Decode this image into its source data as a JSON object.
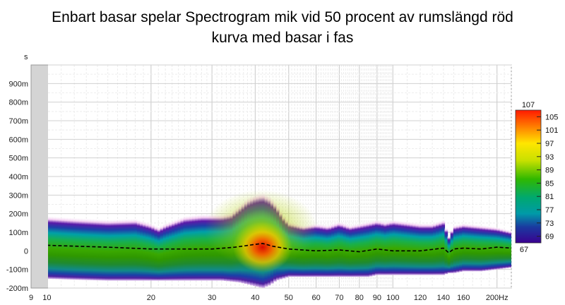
{
  "title_line1": "Enbart basar spelar Spectrogram mik vid 50 procent av rumslängd röd",
  "title_line2": "kurva med basar i fas",
  "chart_data": {
    "type": "heatmap",
    "y_unit_label": "s",
    "x_unit_label": "Hz",
    "x_scale": "log",
    "x_range": [
      9,
      220
    ],
    "y_range": [
      -0.2,
      1.0
    ],
    "x_ticks": [
      "9",
      "10",
      "20",
      "30",
      "40",
      "50",
      "60",
      "70",
      "80",
      "90",
      "100",
      "120",
      "140",
      "160",
      "200Hz"
    ],
    "x_tick_values": [
      9,
      10,
      20,
      30,
      40,
      50,
      60,
      70,
      80,
      90,
      100,
      120,
      140,
      160,
      200
    ],
    "y_ticks": [
      "900m",
      "800m",
      "700m",
      "600m",
      "500m",
      "400m",
      "300m",
      "200m",
      "100m",
      "0",
      "-100m",
      "-200m"
    ],
    "y_tick_values": [
      0.9,
      0.8,
      0.7,
      0.6,
      0.5,
      0.4,
      0.3,
      0.2,
      0.1,
      0.0,
      -0.1,
      -0.2
    ],
    "colorbar": {
      "max_label": "107",
      "min_label": "67",
      "labels": [
        "105",
        "101",
        "97",
        "93",
        "89",
        "85",
        "81",
        "77",
        "73",
        "69"
      ],
      "label_values": [
        105,
        101,
        97,
        93,
        89,
        85,
        81,
        77,
        73,
        69
      ],
      "range": [
        67,
        107
      ]
    },
    "envelope": {
      "freq": [
        10,
        12,
        15,
        18,
        20,
        21,
        22,
        25,
        28,
        32,
        34,
        36,
        38,
        40,
        42,
        44,
        46,
        48,
        50,
        55,
        60,
        65,
        70,
        75,
        80,
        85,
        90,
        95,
        100,
        110,
        120,
        130,
        140,
        145,
        150,
        160,
        180,
        200,
        220
      ],
      "top_s": [
        0.19,
        0.18,
        0.17,
        0.175,
        0.15,
        0.13,
        0.15,
        0.19,
        0.2,
        0.2,
        0.21,
        0.25,
        0.29,
        0.31,
        0.32,
        0.3,
        0.26,
        0.2,
        0.16,
        0.14,
        0.15,
        0.14,
        0.16,
        0.14,
        0.15,
        0.16,
        0.17,
        0.16,
        0.17,
        0.16,
        0.15,
        0.15,
        0.17,
        0.08,
        0.14,
        0.15,
        0.14,
        0.13,
        0.11
      ],
      "bottom_s": [
        -0.15,
        -0.155,
        -0.16,
        -0.16,
        -0.16,
        -0.16,
        -0.16,
        -0.16,
        -0.16,
        -0.16,
        -0.165,
        -0.17,
        -0.18,
        -0.19,
        -0.2,
        -0.185,
        -0.16,
        -0.15,
        -0.14,
        -0.14,
        -0.14,
        -0.14,
        -0.14,
        -0.14,
        -0.14,
        -0.14,
        -0.13,
        -0.13,
        -0.13,
        -0.13,
        -0.13,
        -0.13,
        -0.13,
        -0.12,
        -0.12,
        -0.11,
        -0.11,
        -0.1,
        -0.09
      ]
    },
    "peak_arrival": {
      "freq": [
        10,
        15,
        20,
        25,
        30,
        35,
        40,
        42,
        45,
        50,
        60,
        70,
        80,
        90,
        100,
        120,
        140,
        145,
        150,
        160,
        180,
        200,
        220
      ],
      "time_s": [
        0.03,
        0.02,
        0.01,
        0.01,
        0.01,
        0.02,
        0.035,
        0.04,
        0.025,
        0.01,
        0.0,
        0.005,
        -0.005,
        0.01,
        0.0,
        0.0,
        0.015,
        -0.01,
        0.01,
        0.015,
        0.01,
        0.02,
        0.015
      ]
    },
    "hot_spot": {
      "freq": 42,
      "time_s": 0.02,
      "level": 106
    }
  }
}
